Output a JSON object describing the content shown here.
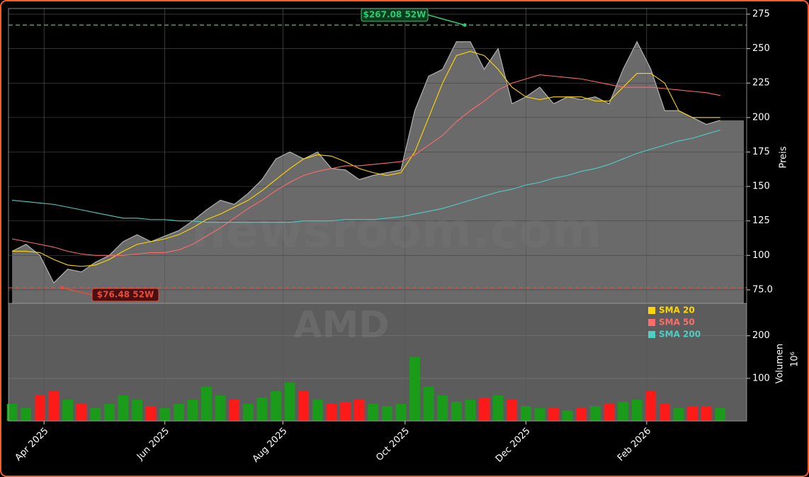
{
  "chart_data": [
    {
      "type": "line",
      "watermark": "newsroom.com",
      "ylabel": "Preis",
      "xlim": [
        -0.26,
        52.9
      ],
      "ylim": [
        65.2,
        279.1
      ],
      "yticks": [
        {
          "value": 75,
          "label": "75.0"
        },
        100,
        125,
        150,
        175,
        200,
        225,
        250,
        275
      ],
      "xticks": [
        {
          "value": 2.3,
          "label": "Apr 2025"
        },
        {
          "value": 11.0,
          "label": "Jun 2025"
        },
        {
          "value": 19.5,
          "label": "Aug 2025"
        },
        {
          "value": 28.3,
          "label": "Oct 2025"
        },
        {
          "value": 37.0,
          "label": "Dec 2025"
        },
        {
          "value": 45.7,
          "label": "Feb 2026"
        }
      ],
      "grid": true,
      "series": [
        {
          "color": "#b0b0b0",
          "values": [
            103,
            108,
            100,
            80,
            90,
            88,
            95,
            100,
            110,
            115,
            110,
            114,
            118,
            125,
            133,
            140,
            137,
            145,
            155,
            170,
            175,
            170,
            175,
            163,
            162,
            155,
            158,
            160,
            162,
            205,
            230,
            235,
            255,
            255,
            235,
            250,
            210,
            215,
            222,
            210,
            215,
            213,
            215,
            210,
            235,
            255,
            235,
            205,
            205,
            200,
            195,
            198
          ]
        },
        {
          "name": "SMA 20",
          "color": "#ffd700",
          "values": [
            103,
            103,
            102,
            97,
            93,
            92,
            93,
            97,
            103,
            108,
            110,
            112,
            115,
            120,
            126,
            130,
            135,
            140,
            147,
            155,
            163,
            170,
            173,
            172,
            168,
            163,
            160,
            158,
            160,
            175,
            200,
            225,
            245,
            248,
            245,
            235,
            222,
            215,
            213,
            215,
            215,
            215,
            212,
            212,
            222,
            232,
            232,
            225,
            205,
            200,
            200,
            200
          ]
        },
        {
          "name": "SMA 50",
          "color": "#ff6b6b",
          "values": [
            112,
            110,
            108,
            106,
            103,
            101,
            100,
            100,
            100,
            101,
            102,
            102,
            104,
            108,
            114,
            120,
            127,
            134,
            140,
            147,
            153,
            158,
            161,
            163,
            165,
            165,
            166,
            167,
            168,
            173,
            180,
            187,
            197,
            205,
            212,
            220,
            225,
            228,
            231,
            230,
            229,
            228,
            226,
            224,
            222,
            222,
            222,
            221,
            220,
            219,
            218,
            216
          ]
        },
        {
          "name": "SMA 200",
          "color": "#4ecdc4",
          "values": [
            140,
            139,
            138,
            137,
            135,
            133,
            131,
            129,
            127,
            127,
            126,
            126,
            125,
            125,
            124,
            124,
            124,
            124,
            124,
            124,
            124,
            125,
            125,
            125,
            126,
            126,
            126,
            127,
            128,
            130,
            132,
            134,
            137,
            140,
            143,
            146,
            148,
            151,
            153,
            156,
            158,
            161,
            163,
            166,
            170,
            174,
            177,
            180,
            183,
            185,
            188,
            191
          ]
        }
      ],
      "annotations": [
        {
          "text": "$267.08 52W",
          "value": 267.08,
          "index": 32.6,
          "color": "#2ecc71"
        },
        {
          "text": "$76.48 52W",
          "value": 76.48,
          "index": 3.6,
          "color": "#e74c3c"
        }
      ]
    },
    {
      "type": "bar",
      "watermark": "AMD",
      "ylabel": "Volumen",
      "unit": "10⁶",
      "ylim": [
        0,
        276
      ],
      "yticks": [
        100,
        200
      ],
      "up_color": "#1a9c1a",
      "down_color": "#ff1a1a",
      "values": [
        40,
        30,
        60,
        70,
        50,
        40,
        30,
        40,
        60,
        50,
        35,
        30,
        40,
        50,
        80,
        60,
        50,
        40,
        55,
        70,
        90,
        70,
        50,
        40,
        45,
        50,
        40,
        35,
        40,
        150,
        80,
        60,
        45,
        50,
        55,
        60,
        50,
        35,
        30,
        30,
        25,
        30,
        35,
        40,
        45,
        50,
        70,
        40,
        30,
        35,
        35,
        30
      ]
    }
  ]
}
